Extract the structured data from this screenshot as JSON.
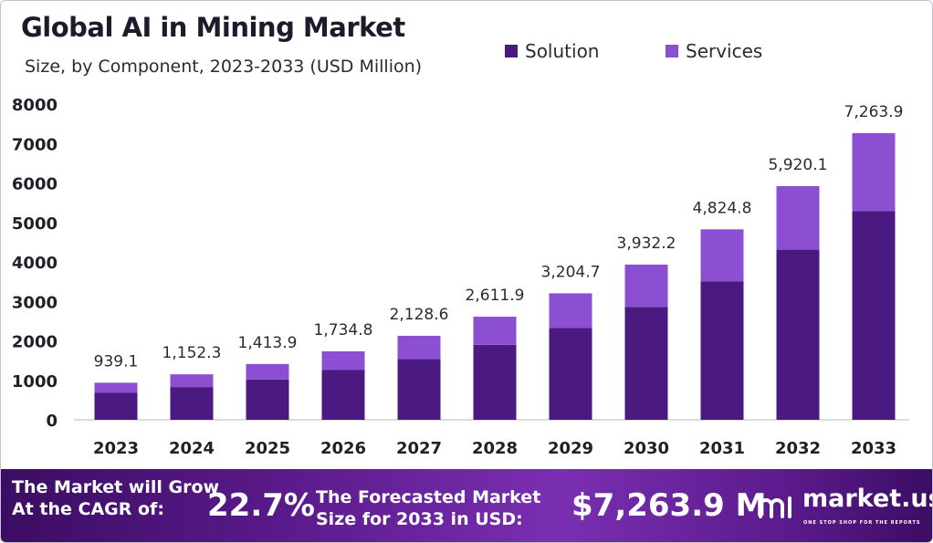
{
  "title": "Global AI in Mining Market",
  "subtitle": "Size, by Component, 2023-2033 (USD Million)",
  "colors": {
    "solution": "#4a1a80",
    "services": "#8c4fd1",
    "axis": "#b9b9c2"
  },
  "chart_data": {
    "type": "bar",
    "stacked": true,
    "categories": [
      "2023",
      "2024",
      "2025",
      "2026",
      "2027",
      "2028",
      "2029",
      "2030",
      "2031",
      "2032",
      "2033"
    ],
    "series": [
      {
        "name": "Solution",
        "values": [
          690,
          830,
          1020,
          1260,
          1540,
          1900,
          2330,
          2860,
          3510,
          4310,
          5290
        ]
      },
      {
        "name": "Services",
        "values": [
          249.1,
          322.3,
          393.9,
          474.8,
          588.6,
          711.9,
          874.7,
          1072.2,
          1314.8,
          1610.1,
          1973.9
        ]
      }
    ],
    "totals": [
      "939.1",
      "1,152.3",
      "1,413.9",
      "1,734.8",
      "2,128.6",
      "2,611.9",
      "3,204.7",
      "3,932.2",
      "4,824.8",
      "5,920.1",
      "7,263.9"
    ],
    "yticks": [
      "0",
      "1000",
      "2000",
      "3000",
      "4000",
      "5000",
      "6000",
      "7000",
      "8000"
    ],
    "ylim": [
      0,
      8000
    ],
    "legend": "top-right",
    "grid": false
  },
  "footer": {
    "cagr_line1": "The Market will Grow",
    "cagr_line2": "At the CAGR of:",
    "cagr_value": "22.7%",
    "forecast_line1": "The Forecasted Market",
    "forecast_line2": "Size for 2033 in USD:",
    "forecast_value": "$7,263.9 M",
    "brand": "market.us",
    "tagline": "ONE STOP SHOP FOR THE REPORTS"
  }
}
